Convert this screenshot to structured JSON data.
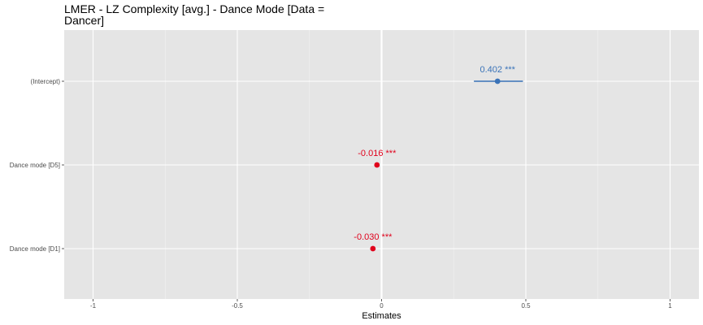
{
  "chart_data": {
    "type": "forest",
    "title": "LMER - LZ Complexity [avg.] - Dance Mode [Data = Dancer]",
    "xlabel": "Estimates",
    "ylabel": "",
    "xlim": [
      -1.1,
      1.1
    ],
    "x_ticks": [
      -1,
      -0.5,
      0,
      0.5,
      1
    ],
    "x_tick_labels": [
      "-1",
      "-0.5",
      "0",
      "0.5",
      "1"
    ],
    "grid": true,
    "terms": [
      {
        "label": "(Intercept)",
        "estimate": 0.402,
        "ci": [
          0.32,
          0.49
        ],
        "text": "0.402 ***",
        "color": "#3a73b8"
      },
      {
        "label": "Dance mode [D5]",
        "estimate": -0.016,
        "ci": [
          -0.02,
          -0.012
        ],
        "text": "-0.016 ***",
        "color": "#e0001b"
      },
      {
        "label": "Dance mode [D1]",
        "estimate": -0.03,
        "ci": [
          -0.034,
          -0.026
        ],
        "text": "-0.030 ***",
        "color": "#e0001b"
      }
    ],
    "colors": {
      "positive": "#3a73b8",
      "negative": "#e0001b",
      "panel_bg": "#e5e5e5",
      "grid": "#ffffff"
    }
  }
}
